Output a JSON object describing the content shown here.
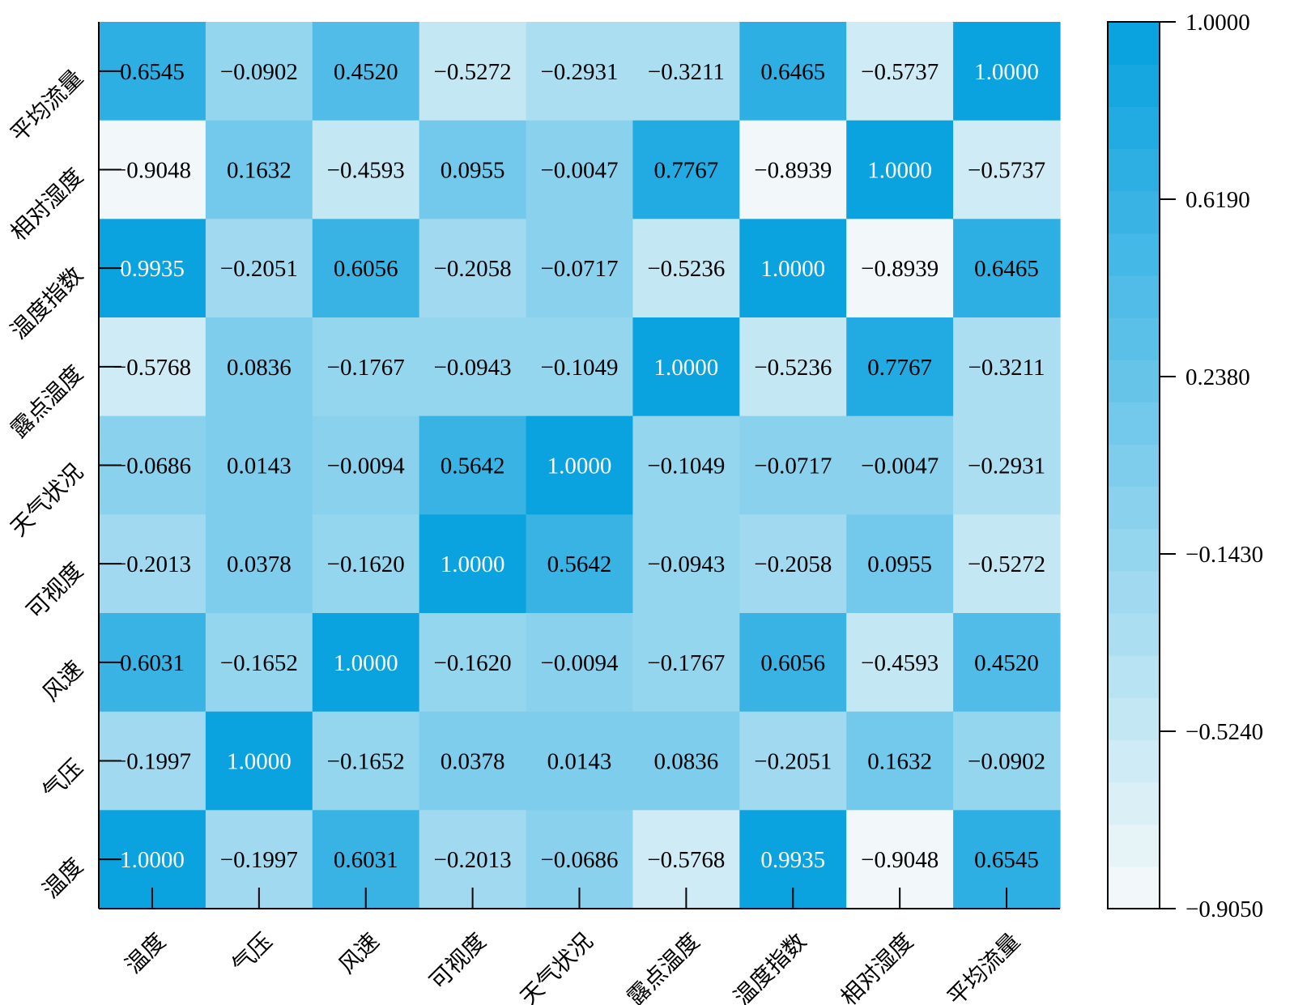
{
  "chart_data": {
    "type": "heatmap",
    "title": "",
    "x_labels": [
      "温度",
      "气压",
      "风速",
      "可视度",
      "天气状况",
      "露点温度",
      "温度指数",
      "相对湿度",
      "平均流量"
    ],
    "y_labels_top_to_bottom": [
      "平均流量",
      "相对湿度",
      "温度指数",
      "露点温度",
      "天气状况",
      "可视度",
      "风速",
      "气压",
      "温度"
    ],
    "values_top_to_bottom": [
      [
        0.6545,
        -0.0902,
        0.452,
        -0.5272,
        -0.2931,
        -0.3211,
        0.6465,
        -0.5737,
        1.0
      ],
      [
        -0.9048,
        0.1632,
        -0.4593,
        0.0955,
        -0.0047,
        0.7767,
        -0.8939,
        1.0,
        -0.5737
      ],
      [
        0.9935,
        -0.2051,
        0.6056,
        -0.2058,
        -0.0717,
        -0.5236,
        1.0,
        -0.8939,
        0.6465
      ],
      [
        -0.5768,
        0.0836,
        -0.1767,
        -0.0943,
        -0.1049,
        1.0,
        -0.5236,
        0.7767,
        -0.3211
      ],
      [
        -0.0686,
        0.0143,
        -0.0094,
        0.5642,
        1.0,
        -0.1049,
        -0.0717,
        -0.0047,
        -0.2931
      ],
      [
        -0.2013,
        0.0378,
        -0.162,
        1.0,
        0.5642,
        -0.0943,
        -0.2058,
        0.0955,
        -0.5272
      ],
      [
        0.6031,
        -0.1652,
        1.0,
        -0.162,
        -0.0094,
        -0.1767,
        0.6056,
        -0.4593,
        0.452
      ],
      [
        -0.1997,
        1.0,
        -0.1652,
        0.0378,
        0.0143,
        0.0836,
        -0.2051,
        0.1632,
        -0.0902
      ],
      [
        1.0,
        -0.1997,
        0.6031,
        -0.2013,
        -0.0686,
        -0.5768,
        0.9935,
        -0.9048,
        0.6545
      ]
    ],
    "value_labels_top_to_bottom": [
      [
        "0.6545",
        "−0.0902",
        "0.4520",
        "−0.5272",
        "−0.2931",
        "−0.3211",
        "0.6465",
        "−0.5737",
        "1.0000"
      ],
      [
        "−0.9048",
        "0.1632",
        "−0.4593",
        "0.0955",
        "−0.0047",
        "0.7767",
        "−0.8939",
        "1.0000",
        "−0.5737"
      ],
      [
        "0.9935",
        "−0.2051",
        "0.6056",
        "−0.2058",
        "−0.0717",
        "−0.5236",
        "1.0000",
        "−0.8939",
        "0.6465"
      ],
      [
        "−0.5768",
        "0.0836",
        "−0.1767",
        "−0.0943",
        "−0.1049",
        "1.0000",
        "−0.5236",
        "0.7767",
        "−0.3211"
      ],
      [
        "−0.0686",
        "0.0143",
        "−0.0094",
        "0.5642",
        "1.0000",
        "−0.1049",
        "−0.0717",
        "−0.0047",
        "−0.2931"
      ],
      [
        "−0.2013",
        "0.0378",
        "−0.1620",
        "1.0000",
        "0.5642",
        "−0.0943",
        "−0.2058",
        "0.0955",
        "−0.5272"
      ],
      [
        "0.6031",
        "−0.1652",
        "1.0000",
        "−0.1620",
        "−0.0094",
        "−0.1767",
        "0.6056",
        "−0.4593",
        "0.4520"
      ],
      [
        "−0.1997",
        "1.0000",
        "−0.1652",
        "0.0378",
        "0.0143",
        "0.0836",
        "−0.2051",
        "0.1632",
        "−0.0902"
      ],
      [
        "1.0000",
        "−0.1997",
        "0.6031",
        "−0.2013",
        "−0.0686",
        "−0.5768",
        "0.9935",
        "−0.9048",
        "0.6545"
      ]
    ],
    "colorbar": {
      "min": -0.905,
      "max": 1.0,
      "levels": 21,
      "ticks": [
        -0.905,
        -0.524,
        -0.143,
        0.238,
        0.619,
        1.0
      ],
      "tick_labels": [
        "−0.9050",
        "−0.5240",
        "−0.1430",
        "0.2380",
        "0.6190",
        "1.0000"
      ]
    },
    "colors": {
      "low": "#f2f8f9",
      "high": "#0aa2df",
      "text_dark": "#000000",
      "text_light": "#ffffff"
    },
    "light_text_threshold": 0.9
  }
}
